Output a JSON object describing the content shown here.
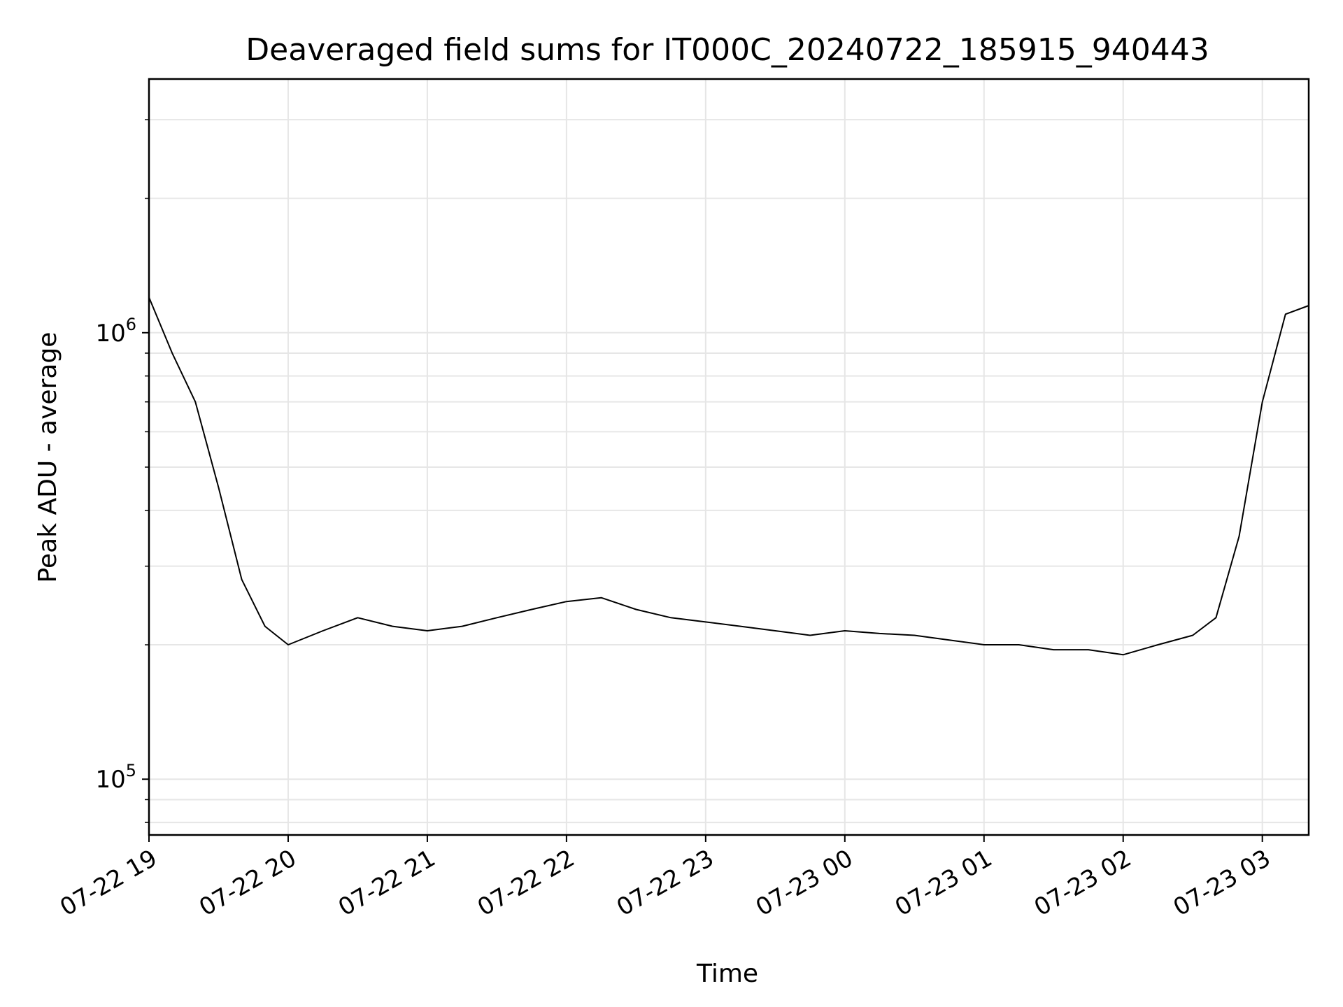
{
  "chart_data": {
    "type": "line",
    "title": "Deaveraged field sums for IT000C_20240722_185915_940443",
    "xlabel": "Time",
    "ylabel": "Peak ADU - average",
    "x_axis": {
      "type": "time",
      "range": [
        "2024-07-22 19:00",
        "2024-07-23 03:20"
      ],
      "ticks": [
        {
          "t": "2024-07-22 19:00",
          "label": "07-22 19"
        },
        {
          "t": "2024-07-22 20:00",
          "label": "07-22 20"
        },
        {
          "t": "2024-07-22 21:00",
          "label": "07-22 21"
        },
        {
          "t": "2024-07-22 22:00",
          "label": "07-22 22"
        },
        {
          "t": "2024-07-22 23:00",
          "label": "07-22 23"
        },
        {
          "t": "2024-07-23 00:00",
          "label": "07-23 00"
        },
        {
          "t": "2024-07-23 01:00",
          "label": "07-23 01"
        },
        {
          "t": "2024-07-23 02:00",
          "label": "07-23 02"
        },
        {
          "t": "2024-07-23 03:00",
          "label": "07-23 03"
        }
      ]
    },
    "y_axis": {
      "scale": "log",
      "range": [
        75000,
        3700000
      ],
      "major_ticks": [
        {
          "value": 100000,
          "base": "10",
          "exp": "5"
        },
        {
          "value": 1000000,
          "base": "10",
          "exp": "6"
        }
      ],
      "minor_ticks": [
        80000,
        90000,
        200000,
        300000,
        400000,
        500000,
        600000,
        700000,
        800000,
        900000,
        2000000,
        3000000
      ]
    },
    "grid": true,
    "line_color": "#000000",
    "series": [
      {
        "x": [
          "2024-07-22 19:00",
          "2024-07-22 19:10",
          "2024-07-22 19:20",
          "2024-07-22 19:30",
          "2024-07-22 19:40",
          "2024-07-22 19:50",
          "2024-07-22 20:00",
          "2024-07-22 20:15",
          "2024-07-22 20:30",
          "2024-07-22 20:45",
          "2024-07-22 21:00",
          "2024-07-22 21:15",
          "2024-07-22 21:30",
          "2024-07-22 21:45",
          "2024-07-22 22:00",
          "2024-07-22 22:15",
          "2024-07-22 22:30",
          "2024-07-22 22:45",
          "2024-07-22 23:00",
          "2024-07-22 23:15",
          "2024-07-22 23:30",
          "2024-07-22 23:45",
          "2024-07-23 00:00",
          "2024-07-23 00:15",
          "2024-07-23 00:30",
          "2024-07-23 00:45",
          "2024-07-23 01:00",
          "2024-07-23 01:15",
          "2024-07-23 01:30",
          "2024-07-23 01:45",
          "2024-07-23 02:00",
          "2024-07-23 02:15",
          "2024-07-23 02:30",
          "2024-07-23 02:40",
          "2024-07-23 02:50",
          "2024-07-23 03:00",
          "2024-07-23 03:10",
          "2024-07-23 03:20"
        ],
        "y": [
          1200000,
          900000,
          700000,
          450000,
          280000,
          220000,
          200000,
          215000,
          230000,
          220000,
          215000,
          220000,
          230000,
          240000,
          250000,
          255000,
          240000,
          230000,
          225000,
          220000,
          215000,
          210000,
          215000,
          212000,
          210000,
          205000,
          200000,
          200000,
          195000,
          195000,
          190000,
          200000,
          210000,
          230000,
          350000,
          700000,
          1100000,
          1150000
        ]
      }
    ]
  }
}
